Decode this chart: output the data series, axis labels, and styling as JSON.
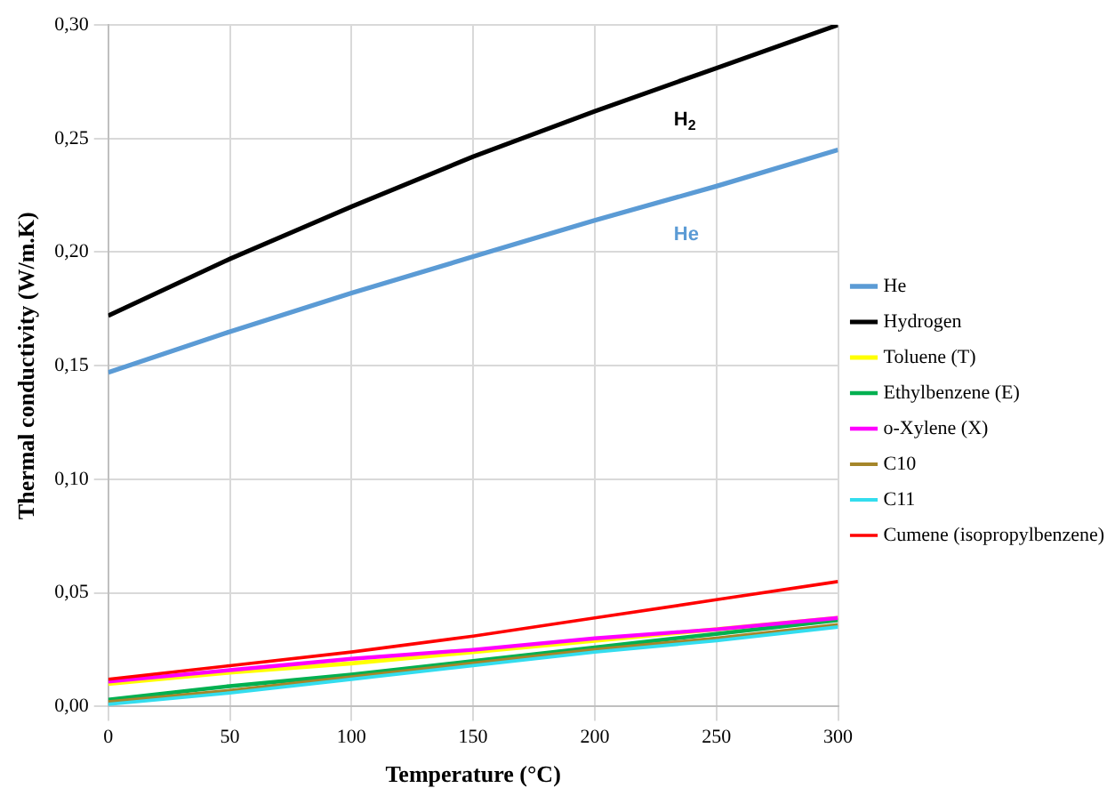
{
  "chart_data": {
    "type": "line",
    "xlabel": "Temperature (°C)",
    "ylabel": "Thermal conductivity (W/m.K)",
    "x": [
      0,
      50,
      100,
      150,
      200,
      250,
      300
    ],
    "series": [
      {
        "name": "He",
        "color": "#5b9bd5",
        "values": [
          0.147,
          0.165,
          0.182,
          0.198,
          0.214,
          0.229,
          0.245
        ]
      },
      {
        "name": "Hydrogen",
        "color": "#000000",
        "values": [
          0.172,
          0.197,
          0.22,
          0.242,
          0.262,
          0.281,
          0.3
        ]
      },
      {
        "name": "Toluene (T)",
        "color": "#ffff00",
        "values": [
          0.01,
          0.015,
          0.019,
          0.024,
          0.029,
          0.034,
          0.039
        ]
      },
      {
        "name": "Ethylbenzene (E)",
        "color": "#00b050",
        "values": [
          0.003,
          0.009,
          0.014,
          0.02,
          0.026,
          0.032,
          0.038
        ]
      },
      {
        "name": "o-Xylene (X)",
        "color": "#ff00ff",
        "values": [
          0.011,
          0.016,
          0.021,
          0.025,
          0.03,
          0.034,
          0.039
        ]
      },
      {
        "name": "C10",
        "color": "#a5862a",
        "values": [
          0.002,
          0.007,
          0.013,
          0.019,
          0.025,
          0.03,
          0.036
        ]
      },
      {
        "name": "C11",
        "color": "#33ddee",
        "values": [
          0.001,
          0.006,
          0.012,
          0.018,
          0.024,
          0.029,
          0.035
        ]
      },
      {
        "name": "Cumene (isopropylbenzene)",
        "color": "#ff0000",
        "values": [
          0.012,
          0.018,
          0.024,
          0.031,
          0.039,
          0.047,
          0.055
        ]
      }
    ],
    "xlim": [
      0,
      300
    ],
    "xticks": [
      0,
      50,
      100,
      150,
      200,
      250,
      300
    ],
    "ylim": [
      0,
      0.3
    ],
    "yticks": [
      {
        "value": 0,
        "label": "0,00"
      },
      {
        "value": 0.05,
        "label": "0,05"
      },
      {
        "value": 0.1,
        "label": "0,10"
      },
      {
        "value": 0.15,
        "label": "0,15"
      },
      {
        "value": 0.2,
        "label": "0,20"
      },
      {
        "value": 0.25,
        "label": "0,25"
      },
      {
        "value": 0.3,
        "label": "0,30"
      }
    ],
    "annotations": [
      "H$_{2}$",
      "He"
    ],
    "grid": true,
    "legend": "right",
    "marker": "none",
    "line_style": "solid"
  }
}
